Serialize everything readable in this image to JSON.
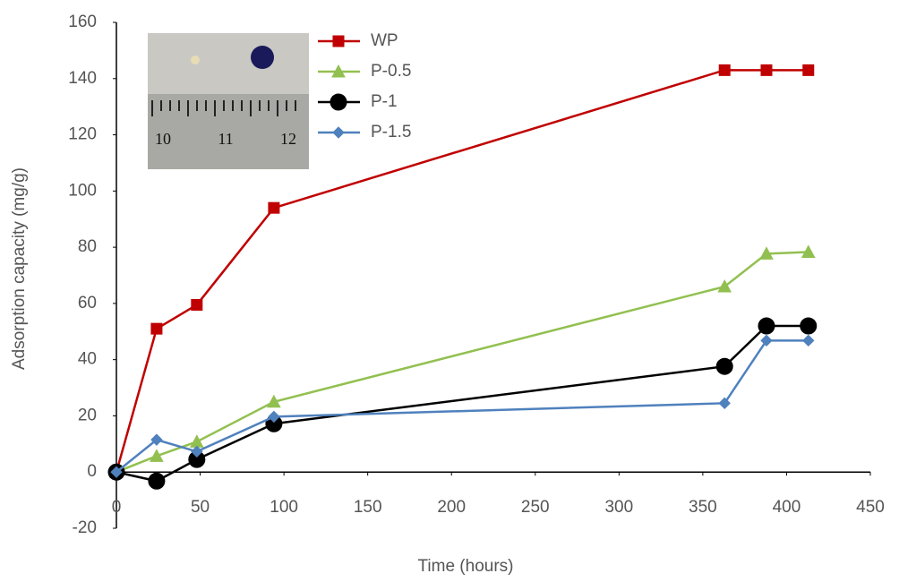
{
  "chart_data": {
    "type": "line",
    "xlabel": "Time (hours)",
    "ylabel": "Adsorption capacity (mg/g)",
    "x": [
      0,
      24,
      48,
      94,
      363,
      388,
      413
    ],
    "xlim": [
      0,
      450
    ],
    "xticks": [
      0,
      50,
      100,
      150,
      200,
      250,
      300,
      350,
      400,
      450
    ],
    "ylim": [
      -20,
      160
    ],
    "yticks": [
      -20,
      0,
      20,
      40,
      60,
      80,
      100,
      120,
      140,
      160
    ],
    "grid": false,
    "legend": "upper-left",
    "inset_ruler_labels": [
      "10",
      "11",
      "12"
    ],
    "series": [
      {
        "name": "WP",
        "color": "#c00000",
        "marker": "square",
        "values": [
          0,
          51,
          59.5,
          94,
          143,
          143,
          143
        ]
      },
      {
        "name": "P-0.5",
        "color": "#92c050",
        "marker": "triangle",
        "values": [
          0,
          5.7,
          10.8,
          25,
          66,
          77.7,
          78.3
        ]
      },
      {
        "name": "P-1",
        "color": "#000000",
        "marker": "circle",
        "values": [
          0,
          -3.2,
          4.5,
          17.2,
          37.6,
          52,
          52
        ]
      },
      {
        "name": "P-1.5",
        "color": "#4f81bd",
        "marker": "diamond",
        "values": [
          0,
          11.5,
          7.3,
          19.7,
          24.5,
          46.8,
          46.8
        ]
      }
    ]
  }
}
